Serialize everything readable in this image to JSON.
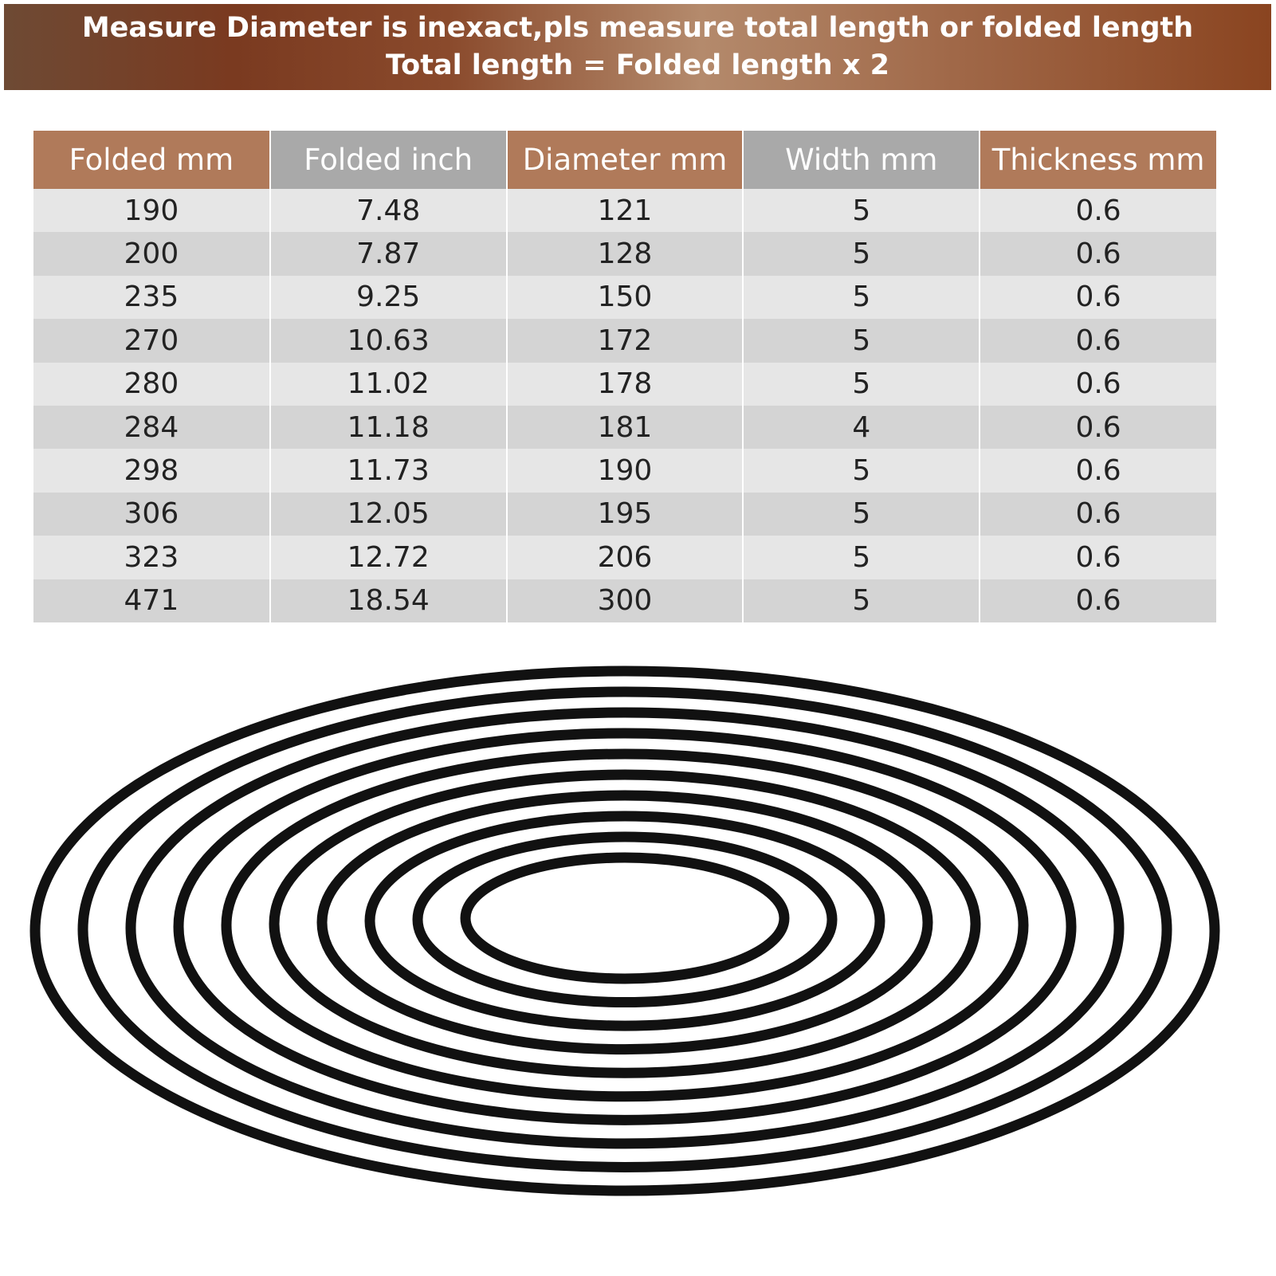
{
  "header": {
    "lines": [
      "Measure Diameter is inexact,pls measure total length or folded length",
      "Total length = Folded length x 2"
    ]
  },
  "table": {
    "columns": [
      "Folded mm",
      "Folded inch",
      "Diameter mm",
      "Width mm",
      "Thickness mm"
    ],
    "rows": [
      [
        190,
        7.48,
        121,
        5,
        0.6
      ],
      [
        200,
        7.87,
        128,
        5,
        0.6
      ],
      [
        235,
        9.25,
        150,
        5,
        0.6
      ],
      [
        270,
        10.63,
        172,
        5,
        0.6
      ],
      [
        280,
        11.02,
        178,
        5,
        0.6
      ],
      [
        284,
        11.18,
        181,
        4,
        0.6
      ],
      [
        298,
        11.73,
        190,
        5,
        0.6
      ],
      [
        306,
        12.05,
        195,
        5,
        0.6
      ],
      [
        323,
        12.72,
        206,
        5,
        0.6
      ],
      [
        471,
        18.54,
        300,
        5,
        0.6
      ]
    ]
  }
}
